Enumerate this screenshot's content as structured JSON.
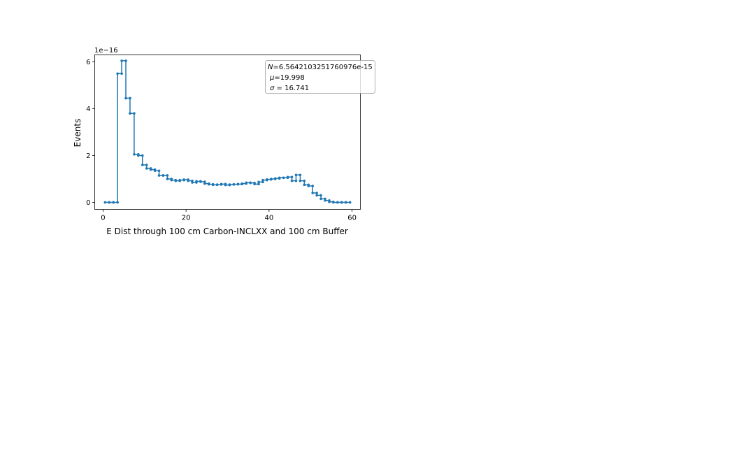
{
  "chart_data": {
    "type": "line",
    "style": "step-histogram",
    "xlabel": "E Dist through 100 cm Carbon-INCLXX and 100 cm Buffer",
    "ylabel": "Events",
    "y_offset_label": "1e−16",
    "y_scale": 1e-16,
    "xlim": [
      -2,
      62
    ],
    "ylim": [
      -0.3,
      6.3
    ],
    "xticks": [
      0,
      20,
      40,
      60
    ],
    "xtick_labels": [
      "0",
      "20",
      "40",
      "60"
    ],
    "yticks": [
      0,
      2,
      4,
      6
    ],
    "ytick_labels": [
      "0",
      "2",
      "4",
      "6"
    ],
    "grid": false,
    "color": "#1f77b4",
    "stats_box": {
      "line1_symbol": "N",
      "line1_value": "=6.5642103251760976e-15",
      "line2_symbol": "μ",
      "line2_value": "=19.998",
      "line3_symbol": "σ",
      "line3_value": " = 16.741"
    },
    "series": [
      {
        "bin_edges": [
          0.5,
          1.5,
          2.5,
          3.5,
          4.5,
          5.5,
          6.5,
          7.5,
          8.5,
          9.5,
          10.5,
          11.5,
          12.5,
          13.5,
          14.5,
          15.5,
          16.5,
          17.5,
          18.5,
          19.5,
          20.5,
          21.5,
          22.5,
          23.5,
          24.5,
          25.5,
          26.5,
          27.5,
          28.5,
          29.5,
          30.5,
          31.5,
          32.5,
          33.5,
          34.5,
          35.5,
          36.5,
          37.5,
          38.5,
          39.5,
          40.5,
          41.5,
          42.5,
          43.5,
          44.5,
          45.5,
          46.5,
          47.5,
          48.5,
          49.5,
          50.5,
          51.5,
          52.5,
          53.5,
          54.5,
          55.5,
          56.5,
          57.5,
          58.5,
          59.5
        ],
        "values": [
          0,
          0,
          0,
          5.5,
          6.05,
          4.45,
          3.8,
          2.05,
          2.0,
          1.6,
          1.45,
          1.4,
          1.35,
          1.15,
          1.15,
          1.0,
          0.95,
          0.92,
          0.95,
          0.97,
          0.92,
          0.85,
          0.9,
          0.88,
          0.8,
          0.77,
          0.75,
          0.76,
          0.78,
          0.74,
          0.76,
          0.77,
          0.78,
          0.8,
          0.84,
          0.83,
          0.78,
          0.87,
          0.95,
          0.98,
          1.0,
          1.02,
          1.05,
          1.05,
          1.08,
          0.92,
          1.17,
          0.92,
          0.75,
          0.7,
          0.4,
          0.3,
          0.15,
          0.08,
          0.02,
          0.0,
          0.0,
          0.0,
          0.0
        ]
      }
    ]
  }
}
